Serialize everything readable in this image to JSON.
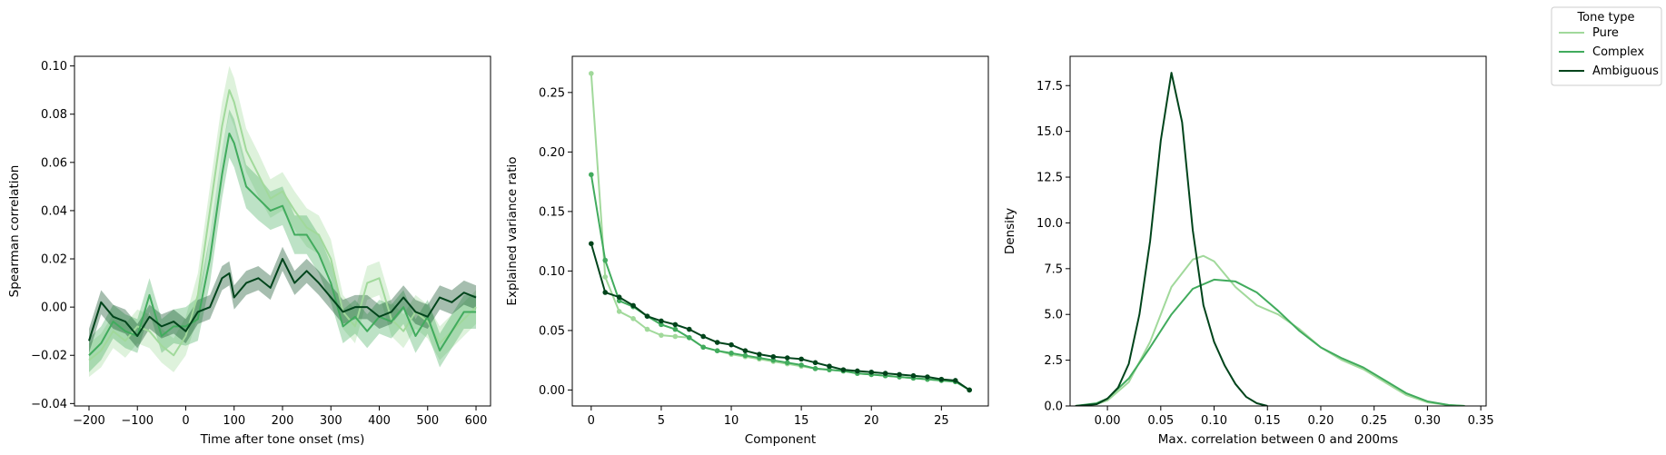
{
  "legend": {
    "title": "Tone type",
    "entries": [
      {
        "label": "Pure",
        "color": "#a1d99b"
      },
      {
        "label": "Complex",
        "color": "#41ab5d"
      },
      {
        "label": "Ambiguous",
        "color": "#00441b"
      }
    ],
    "placement": "top-right outside"
  },
  "chart_data": [
    {
      "type": "line",
      "xlabel": "Time after tone onset (ms)",
      "ylabel": "Spearman correlation",
      "xlim": [
        -230,
        630
      ],
      "ylim": [
        -0.041,
        0.104
      ],
      "xticks": [
        -200,
        -100,
        0,
        100,
        200,
        300,
        400,
        500,
        600
      ],
      "xtick_labels": [
        "−200",
        "−100",
        "0",
        "100",
        "200",
        "300",
        "400",
        "500",
        "600"
      ],
      "yticks": [
        -0.04,
        -0.02,
        0.0,
        0.02,
        0.04,
        0.06,
        0.08,
        0.1
      ],
      "ytick_labels": [
        "−0.04",
        "−0.02",
        "0.00",
        "0.02",
        "0.04",
        "0.06",
        "0.08",
        "0.10"
      ],
      "grid": false,
      "x": [
        -200,
        -175,
        -150,
        -125,
        -100,
        -75,
        -50,
        -25,
        0,
        25,
        50,
        75,
        90,
        100,
        125,
        150,
        175,
        200,
        225,
        250,
        275,
        300,
        325,
        350,
        375,
        400,
        425,
        450,
        475,
        500,
        525,
        550,
        575,
        600
      ],
      "series": [
        {
          "name": "Pure",
          "color": "#a1d99b",
          "values": [
            -0.022,
            -0.018,
            -0.01,
            -0.014,
            -0.008,
            -0.01,
            -0.016,
            -0.02,
            -0.012,
            0.005,
            0.04,
            0.075,
            0.09,
            0.085,
            0.065,
            0.055,
            0.045,
            0.048,
            0.04,
            0.033,
            0.03,
            0.02,
            -0.002,
            -0.008,
            0.01,
            0.012,
            -0.005,
            -0.01,
            -0.002,
            -0.006,
            -0.015,
            -0.01,
            -0.005,
            0.0
          ],
          "band": [
            0.007,
            0.007,
            0.007,
            0.007,
            0.007,
            0.007,
            0.007,
            0.007,
            0.008,
            0.009,
            0.01,
            0.01,
            0.01,
            0.01,
            0.009,
            0.009,
            0.008,
            0.008,
            0.008,
            0.008,
            0.008,
            0.008,
            0.007,
            0.007,
            0.007,
            0.007,
            0.007,
            0.007,
            0.007,
            0.007,
            0.007,
            0.007,
            0.007,
            0.007
          ]
        },
        {
          "name": "Complex",
          "color": "#41ab5d",
          "values": [
            -0.02,
            -0.015,
            -0.006,
            -0.01,
            -0.012,
            0.005,
            -0.012,
            -0.008,
            -0.008,
            -0.005,
            0.02,
            0.055,
            0.072,
            0.068,
            0.05,
            0.045,
            0.04,
            0.042,
            0.03,
            0.03,
            0.022,
            0.01,
            -0.008,
            -0.004,
            -0.01,
            -0.004,
            -0.006,
            0.0,
            -0.012,
            -0.004,
            -0.018,
            -0.01,
            -0.002,
            -0.002
          ],
          "band": [
            0.007,
            0.007,
            0.007,
            0.007,
            0.007,
            0.007,
            0.007,
            0.007,
            0.008,
            0.009,
            0.01,
            0.01,
            0.01,
            0.01,
            0.009,
            0.009,
            0.008,
            0.008,
            0.008,
            0.008,
            0.008,
            0.008,
            0.007,
            0.007,
            0.007,
            0.007,
            0.007,
            0.007,
            0.007,
            0.007,
            0.007,
            0.007,
            0.007,
            0.007
          ]
        },
        {
          "name": "Ambiguous",
          "color": "#00441b",
          "values": [
            -0.014,
            0.002,
            -0.004,
            -0.006,
            -0.012,
            -0.004,
            -0.008,
            -0.006,
            -0.01,
            -0.002,
            0.0,
            0.012,
            0.014,
            0.004,
            0.01,
            0.012,
            0.008,
            0.02,
            0.01,
            0.015,
            0.01,
            0.004,
            -0.002,
            0.0,
            0.0,
            -0.004,
            -0.002,
            0.004,
            -0.002,
            -0.004,
            0.004,
            0.002,
            0.006,
            0.004
          ],
          "band": [
            0.005,
            0.005,
            0.005,
            0.005,
            0.005,
            0.005,
            0.005,
            0.005,
            0.005,
            0.005,
            0.005,
            0.005,
            0.005,
            0.005,
            0.005,
            0.005,
            0.005,
            0.005,
            0.005,
            0.005,
            0.005,
            0.005,
            0.005,
            0.005,
            0.005,
            0.005,
            0.005,
            0.005,
            0.005,
            0.005,
            0.005,
            0.005,
            0.005,
            0.005
          ]
        }
      ]
    },
    {
      "type": "line",
      "xlabel": "Component",
      "ylabel": "Explained variance ratio",
      "xlim": [
        -1.35,
        28.35
      ],
      "ylim": [
        -0.0134,
        0.2804
      ],
      "xticks": [
        0,
        5,
        10,
        15,
        20,
        25
      ],
      "xtick_labels": [
        "0",
        "5",
        "10",
        "15",
        "20",
        "25"
      ],
      "yticks": [
        0.0,
        0.05,
        0.1,
        0.15,
        0.2,
        0.25
      ],
      "ytick_labels": [
        "0.00",
        "0.05",
        "0.10",
        "0.15",
        "0.20",
        "0.25"
      ],
      "grid": false,
      "markers": true,
      "series": [
        {
          "name": "Pure",
          "color": "#a1d99b",
          "x": [
            0,
            1,
            2,
            3,
            4,
            5,
            6,
            7,
            8,
            9,
            10,
            11,
            12,
            13,
            14,
            15,
            16,
            17,
            18,
            19,
            20,
            21,
            22,
            23,
            24,
            25,
            26,
            27
          ],
          "values": [
            0.266,
            0.095,
            0.066,
            0.06,
            0.051,
            0.046,
            0.045,
            0.044,
            0.036,
            0.033,
            0.03,
            0.028,
            0.026,
            0.024,
            0.022,
            0.02,
            0.018,
            0.017,
            0.016,
            0.014,
            0.013,
            0.012,
            0.011,
            0.01,
            0.009,
            0.008,
            0.007,
            0.0
          ]
        },
        {
          "name": "Complex",
          "color": "#41ab5d",
          "x": [
            0,
            1,
            2,
            3,
            4,
            5,
            6,
            7,
            8,
            9,
            10,
            11,
            12,
            13,
            14,
            15,
            16,
            17,
            18,
            19,
            20,
            21,
            22,
            23,
            24,
            25,
            26,
            27
          ],
          "values": [
            0.181,
            0.109,
            0.075,
            0.07,
            0.062,
            0.055,
            0.051,
            0.044,
            0.036,
            0.033,
            0.031,
            0.029,
            0.027,
            0.025,
            0.023,
            0.021,
            0.018,
            0.017,
            0.016,
            0.014,
            0.013,
            0.012,
            0.011,
            0.01,
            0.009,
            0.008,
            0.007,
            0.0
          ]
        },
        {
          "name": "Ambiguous",
          "color": "#00441b",
          "x": [
            0,
            1,
            2,
            3,
            4,
            5,
            6,
            7,
            8,
            9,
            10,
            11,
            12,
            13,
            14,
            15,
            16,
            17,
            18,
            19,
            20,
            21,
            22,
            23,
            24,
            25,
            26,
            27
          ],
          "values": [
            0.123,
            0.082,
            0.078,
            0.071,
            0.062,
            0.058,
            0.055,
            0.051,
            0.045,
            0.04,
            0.038,
            0.033,
            0.03,
            0.028,
            0.027,
            0.026,
            0.023,
            0.02,
            0.017,
            0.016,
            0.015,
            0.014,
            0.013,
            0.012,
            0.011,
            0.009,
            0.008,
            0.0
          ]
        }
      ]
    },
    {
      "type": "area",
      "xlabel": "Max. correlation between 0 and 200ms",
      "ylabel": "Density",
      "xlim": [
        -0.035,
        0.355
      ],
      "ylim": [
        0,
        19.1
      ],
      "xticks": [
        0.0,
        0.05,
        0.1,
        0.15,
        0.2,
        0.25,
        0.3,
        0.35
      ],
      "xtick_labels": [
        "0.00",
        "0.05",
        "0.10",
        "0.15",
        "0.20",
        "0.25",
        "0.30",
        "0.35"
      ],
      "yticks": [
        0,
        2.5,
        5.0,
        7.5,
        10.0,
        12.5,
        15.0,
        17.5
      ],
      "ytick_labels": [
        "0.0",
        "2.5",
        "5.0",
        "7.5",
        "10.0",
        "12.5",
        "15.0",
        "17.5"
      ],
      "grid": false,
      "series": [
        {
          "name": "Pure",
          "color": "#a1d99b",
          "x": [
            -0.03,
            -0.01,
            0.0,
            0.02,
            0.04,
            0.06,
            0.08,
            0.09,
            0.1,
            0.12,
            0.14,
            0.16,
            0.18,
            0.2,
            0.22,
            0.24,
            0.26,
            0.28,
            0.3,
            0.32,
            0.335
          ],
          "values": [
            0.0,
            0.1,
            0.3,
            1.3,
            3.5,
            6.5,
            8.0,
            8.2,
            7.9,
            6.5,
            5.5,
            5.0,
            4.2,
            3.2,
            2.5,
            2.0,
            1.3,
            0.6,
            0.2,
            0.05,
            0.0
          ]
        },
        {
          "name": "Complex",
          "color": "#41ab5d",
          "x": [
            -0.03,
            -0.01,
            0.0,
            0.02,
            0.04,
            0.06,
            0.08,
            0.1,
            0.12,
            0.14,
            0.16,
            0.18,
            0.2,
            0.22,
            0.24,
            0.26,
            0.28,
            0.3,
            0.32,
            0.335
          ],
          "values": [
            0.0,
            0.15,
            0.4,
            1.5,
            3.2,
            5.0,
            6.4,
            6.9,
            6.8,
            6.2,
            5.2,
            4.1,
            3.2,
            2.6,
            2.1,
            1.4,
            0.7,
            0.25,
            0.05,
            0.0
          ]
        },
        {
          "name": "Ambiguous",
          "color": "#00441b",
          "x": [
            -0.03,
            -0.01,
            0.0,
            0.01,
            0.02,
            0.03,
            0.04,
            0.05,
            0.06,
            0.07,
            0.08,
            0.09,
            0.1,
            0.11,
            0.12,
            0.13,
            0.14,
            0.15
          ],
          "values": [
            0.0,
            0.1,
            0.4,
            1.0,
            2.3,
            5.0,
            9.0,
            14.5,
            18.2,
            15.5,
            9.6,
            5.5,
            3.5,
            2.2,
            1.2,
            0.5,
            0.15,
            0.0
          ]
        }
      ]
    }
  ]
}
